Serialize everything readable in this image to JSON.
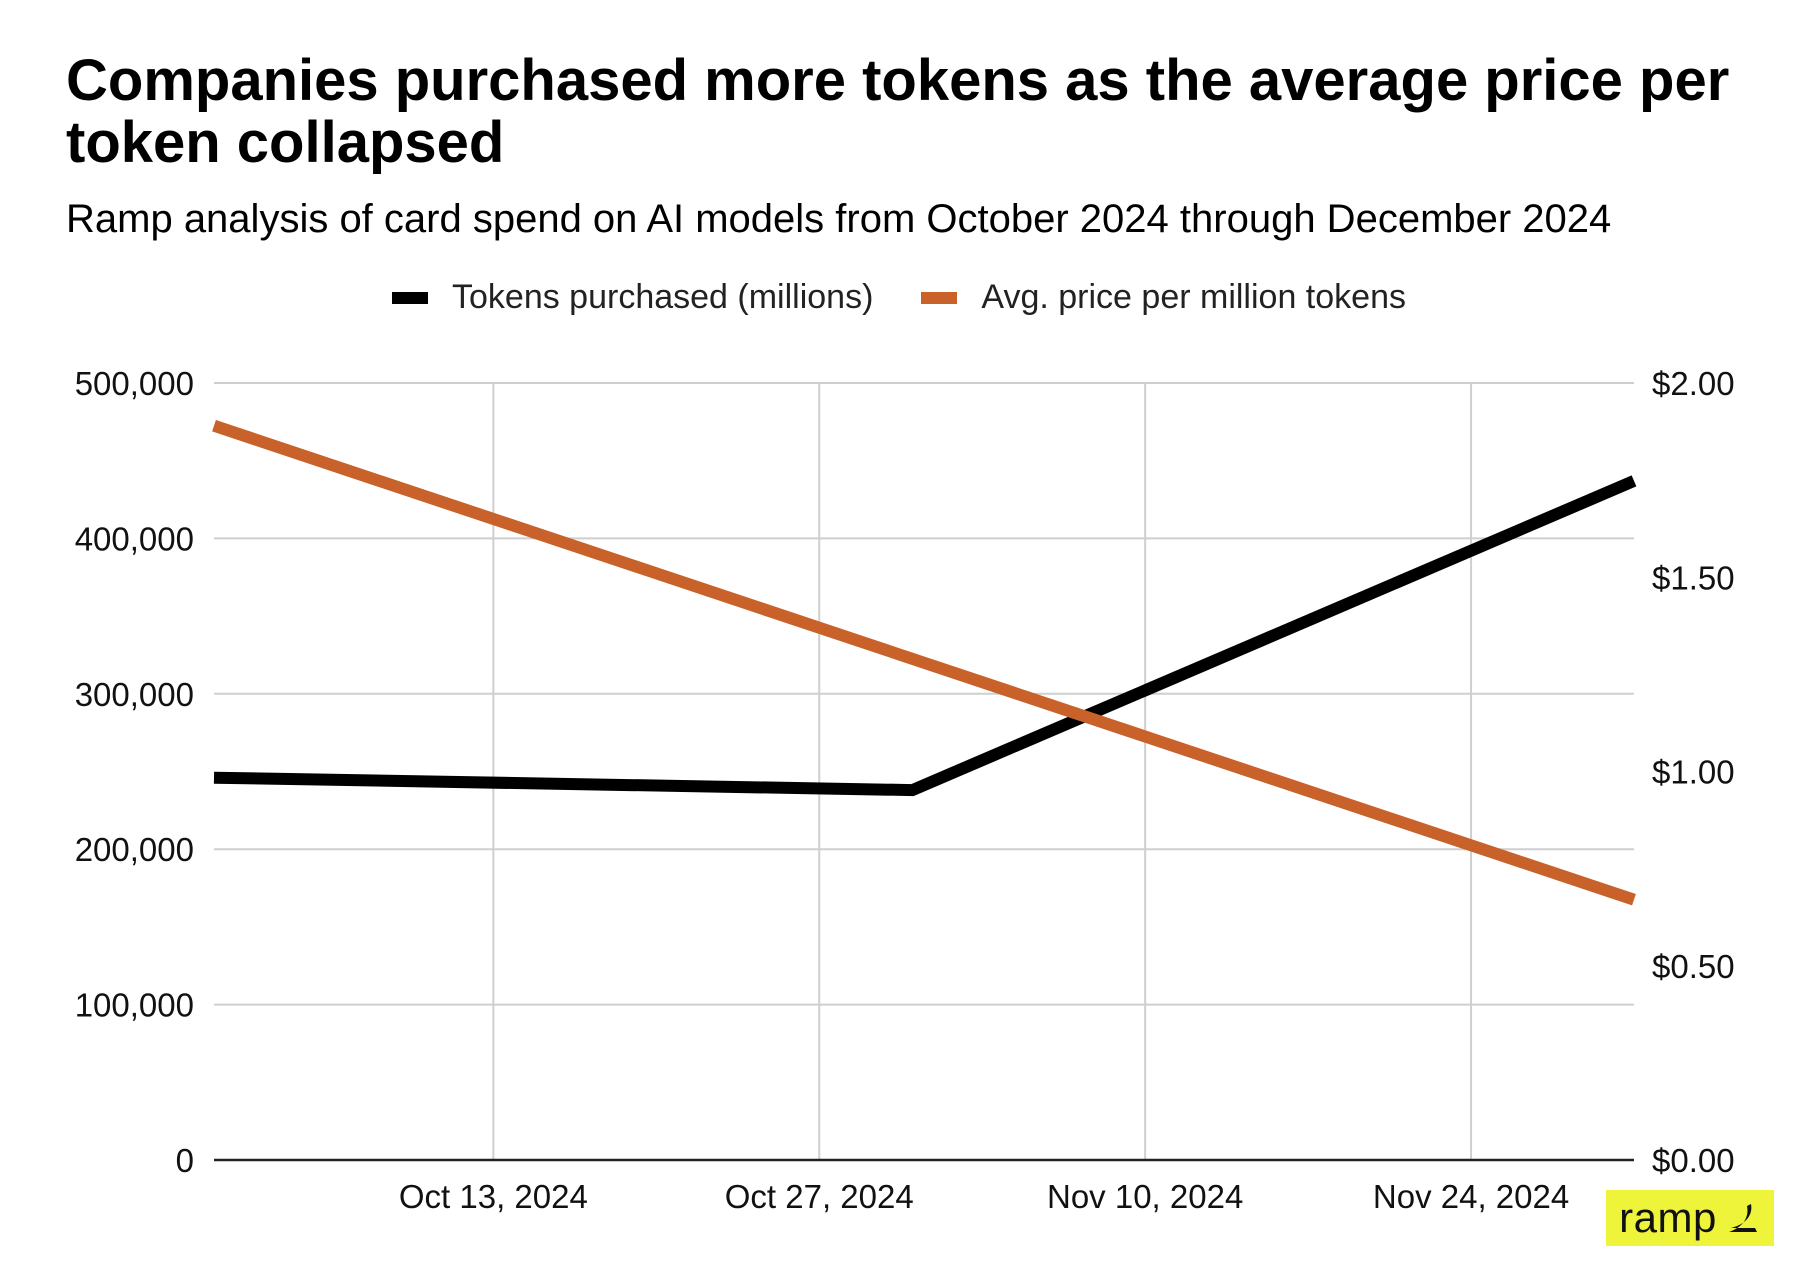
{
  "chart_data": {
    "type": "line",
    "title": "Companies purchased more tokens as the average price per token collapsed",
    "subtitle": "Ramp analysis of card spend on AI models from October 2024 through December 2024",
    "x_tick_labels": [
      "Oct 13, 2024",
      "Oct 27, 2024",
      "Nov 10, 2024",
      "Nov 24, 2024"
    ],
    "x_tick_dates": [
      "2024-10-13",
      "2024-10-27",
      "2024-11-10",
      "2024-11-24"
    ],
    "xlim": [
      "2024-10-01",
      "2024-12-01"
    ],
    "y_left": {
      "ylim": [
        0,
        500000
      ],
      "tick_labels": [
        "0",
        "100,000",
        "200,000",
        "300,000",
        "400,000",
        "500,000"
      ],
      "tick_values": [
        0,
        100000,
        200000,
        300000,
        400000,
        500000
      ]
    },
    "y_right": {
      "ylim": [
        0,
        2.0
      ],
      "tick_labels": [
        "$0.00",
        "$0.50",
        "$1.00",
        "$1.50",
        "$2.00"
      ],
      "tick_values": [
        0,
        0.5,
        1.0,
        1.5,
        2.0
      ]
    },
    "grid": true,
    "legend_position": "top-center",
    "series": [
      {
        "name": "Tokens purchased (millions)",
        "axis": "left",
        "color": "#000000",
        "points": [
          {
            "x": "2024-10-01",
            "y": 246000
          },
          {
            "x": "2024-10-31",
            "y": 238000
          },
          {
            "x": "2024-12-01",
            "y": 437000
          }
        ]
      },
      {
        "name": "Avg. price per million tokens",
        "axis": "right",
        "color": "#c8622a",
        "points": [
          {
            "x": "2024-10-01",
            "y": 1.89
          },
          {
            "x": "2024-12-01",
            "y": 0.67
          }
        ]
      }
    ]
  },
  "logo": {
    "text": "ramp"
  }
}
